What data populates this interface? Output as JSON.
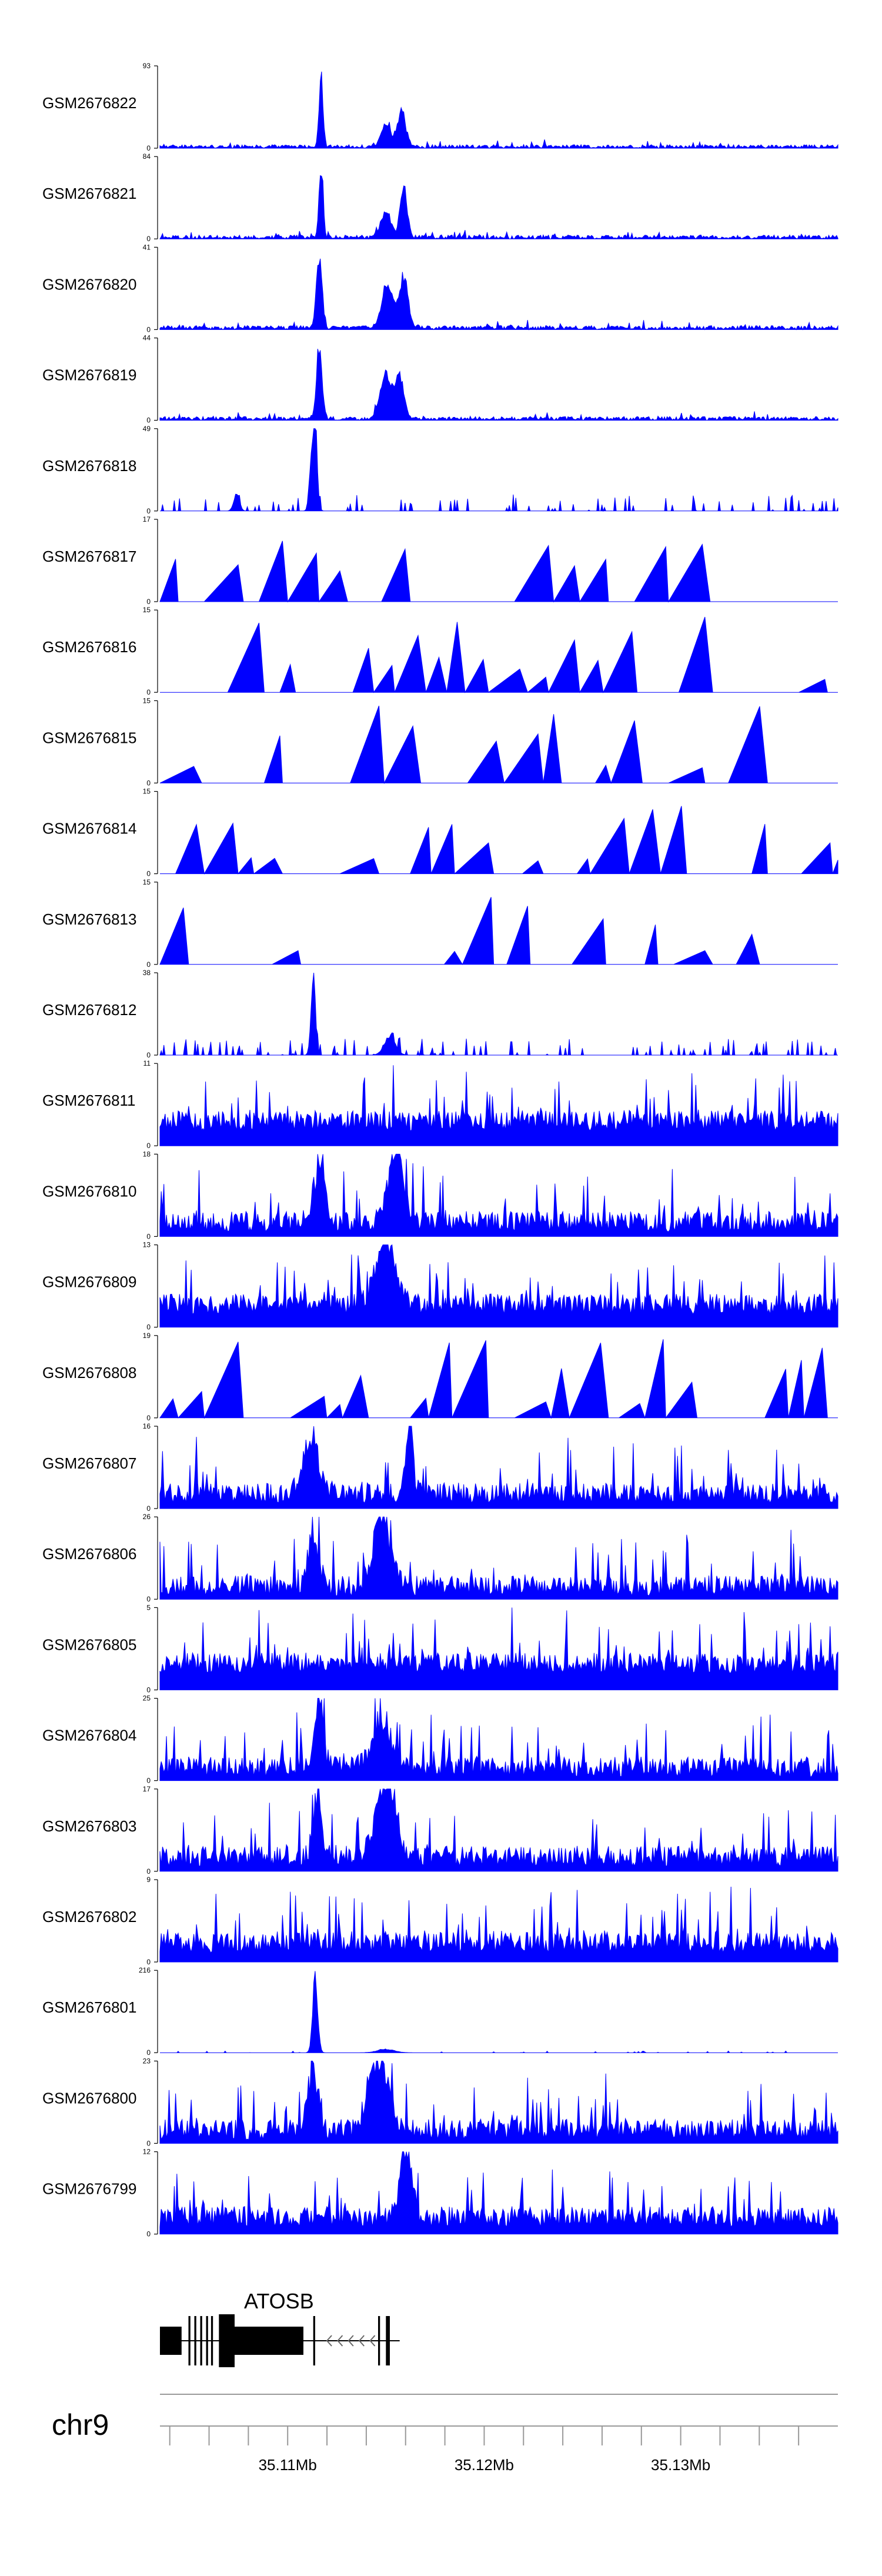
{
  "chart_data": {
    "type": "area",
    "description_note": "Genome-browser coverage tracks on chr9 around ATOSB",
    "chromosome": "chr9",
    "x_range": [
      35104500,
      35139000
    ],
    "x_ticks": [
      35105000,
      35107000,
      35109000,
      35111000,
      35113000,
      35115000,
      35117000,
      35119000,
      35121000,
      35123000,
      35125000,
      35127000,
      35129000,
      35131000,
      35133000,
      35135000,
      35137000
    ],
    "x_tick_labels": [
      {
        "pos": 35111000,
        "label": "35.11Mb"
      },
      {
        "pos": 35121000,
        "label": "35.12Mb"
      },
      {
        "pos": 35131000,
        "label": "35.13Mb"
      }
    ],
    "color": "#0000ff",
    "tracks": [
      {
        "name": "GSM2676822",
        "ymax": "93",
        "ymin": "0",
        "profile": "sharp",
        "seed": 1,
        "peaks": [
          [
            35112700,
            93,
            140
          ],
          [
            35116000,
            30,
            350
          ],
          [
            35116800,
            45,
            300
          ]
        ],
        "base": 4,
        "density": 1.0
      },
      {
        "name": "GSM2676821",
        "ymax": "84",
        "ymin": "0",
        "profile": "sharp",
        "seed": 2,
        "peaks": [
          [
            35112700,
            84,
            140
          ],
          [
            35116000,
            30,
            350
          ],
          [
            35116900,
            60,
            250
          ]
        ],
        "base": 4,
        "density": 1.0
      },
      {
        "name": "GSM2676820",
        "ymax": "41",
        "ymin": "0",
        "profile": "sharp",
        "seed": 3,
        "peaks": [
          [
            35112600,
            41,
            200
          ],
          [
            35116100,
            25,
            400
          ],
          [
            35116900,
            30,
            300
          ]
        ],
        "base": 2,
        "density": 1.0
      },
      {
        "name": "GSM2676819",
        "ymax": "44",
        "ymin": "0",
        "profile": "sharp",
        "seed": 4,
        "peaks": [
          [
            35112600,
            44,
            200
          ],
          [
            35116000,
            28,
            400
          ],
          [
            35116700,
            25,
            300
          ]
        ],
        "base": 2,
        "density": 1.0
      },
      {
        "name": "GSM2676818",
        "ymax": "49",
        "ymin": "0",
        "profile": "sparse",
        "seed": 5,
        "peaks": [
          [
            35112400,
            49,
            160
          ],
          [
            35112200,
            30,
            150
          ],
          [
            35108400,
            12,
            200
          ]
        ],
        "base": 1,
        "density": 0.45
      },
      {
        "name": "GSM2676817",
        "ymax": "17",
        "ymin": "0",
        "profile": "tri",
        "seed": 6,
        "peaks": [],
        "base": 0,
        "density": 0.55
      },
      {
        "name": "GSM2676816",
        "ymax": "15",
        "ymin": "0",
        "profile": "tri",
        "seed": 7,
        "peaks": [],
        "base": 0,
        "density": 0.6
      },
      {
        "name": "GSM2676815",
        "ymax": "15",
        "ymin": "0",
        "profile": "tri",
        "seed": 8,
        "peaks": [],
        "base": 0,
        "density": 0.45
      },
      {
        "name": "GSM2676814",
        "ymax": "15",
        "ymin": "0",
        "profile": "tri",
        "seed": 9,
        "peaks": [],
        "base": 0,
        "density": 0.55
      },
      {
        "name": "GSM2676813",
        "ymax": "15",
        "ymin": "0",
        "profile": "tri",
        "seed": 10,
        "peaks": [],
        "base": 0,
        "density": 0.45
      },
      {
        "name": "GSM2676812",
        "ymax": "38",
        "ymin": "0",
        "profile": "sparse",
        "seed": 11,
        "peaks": [
          [
            35112300,
            38,
            160
          ],
          [
            35116200,
            10,
            400
          ]
        ],
        "base": 1,
        "density": 0.55
      },
      {
        "name": "GSM2676811",
        "ymax": "11",
        "ymin": "0",
        "profile": "dense",
        "seed": 12,
        "peaks": [],
        "base": 2,
        "density": 1.0
      },
      {
        "name": "GSM2676810",
        "ymax": "18",
        "ymin": "0",
        "profile": "dense",
        "seed": 13,
        "peaks": [
          [
            35112600,
            15,
            400
          ],
          [
            35116500,
            18,
            500
          ]
        ],
        "base": 1,
        "density": 0.8
      },
      {
        "name": "GSM2676809",
        "ymax": "13",
        "ymin": "0",
        "profile": "dense",
        "seed": 14,
        "peaks": [
          [
            35116000,
            12,
            700
          ]
        ],
        "base": 2,
        "density": 0.9
      },
      {
        "name": "GSM2676808",
        "ymax": "19",
        "ymin": "0",
        "profile": "tri",
        "seed": 15,
        "peaks": [],
        "base": 0,
        "density": 0.6
      },
      {
        "name": "GSM2676807",
        "ymax": "16",
        "ymin": "0",
        "profile": "dense",
        "seed": 16,
        "peaks": [
          [
            35112200,
            11,
            600
          ],
          [
            35117200,
            16,
            250
          ]
        ],
        "base": 1,
        "density": 0.85
      },
      {
        "name": "GSM2676806",
        "ymax": "26",
        "ymin": "0",
        "profile": "dense",
        "seed": 17,
        "peaks": [
          [
            35112300,
            18,
            400
          ],
          [
            35115800,
            26,
            600
          ]
        ],
        "base": 1,
        "density": 0.8
      },
      {
        "name": "GSM2676805",
        "ymax": "5",
        "ymin": "0",
        "profile": "dense",
        "seed": 18,
        "peaks": [],
        "base": 1,
        "density": 1.0
      },
      {
        "name": "GSM2676804",
        "ymax": "25",
        "ymin": "0",
        "profile": "dense",
        "seed": 19,
        "peaks": [
          [
            35112600,
            25,
            300
          ],
          [
            35115800,
            16,
            700
          ]
        ],
        "base": 1,
        "density": 0.85
      },
      {
        "name": "GSM2676803",
        "ymax": "17",
        "ymin": "0",
        "profile": "dense",
        "seed": 20,
        "peaks": [
          [
            35112500,
            13,
            300
          ],
          [
            35116000,
            17,
            700
          ]
        ],
        "base": 1,
        "density": 0.9
      },
      {
        "name": "GSM2676802",
        "ymax": "9",
        "ymin": "0",
        "profile": "dense",
        "seed": 21,
        "peaks": [],
        "base": 1,
        "density": 1.0
      },
      {
        "name": "GSM2676801",
        "ymax": "216",
        "ymin": "0",
        "profile": "single",
        "seed": 22,
        "peaks": [
          [
            35112400,
            216,
            180
          ],
          [
            35116000,
            10,
            600
          ]
        ],
        "base": 0,
        "density": 0.3
      },
      {
        "name": "GSM2676800",
        "ymax": "23",
        "ymin": "0",
        "profile": "dense",
        "seed": 23,
        "peaks": [
          [
            35112300,
            20,
            350
          ],
          [
            35115600,
            23,
            700
          ]
        ],
        "base": 1,
        "density": 0.85
      },
      {
        "name": "GSM2676799",
        "ymax": "12",
        "ymin": "0",
        "profile": "dense",
        "seed": 24,
        "peaks": [
          [
            35117000,
            12,
            400
          ]
        ],
        "base": 1,
        "density": 0.95
      }
    ],
    "gene": {
      "name": "ATOSB",
      "strand": "-",
      "exons": [
        [
          35104500,
          35105600
        ],
        [
          35105950,
          35106050
        ],
        [
          35106250,
          35106350
        ],
        [
          35106550,
          35106650
        ],
        [
          35106850,
          35106950
        ],
        [
          35107100,
          35107200
        ],
        [
          35107500,
          35108300
        ],
        [
          35108300,
          35111800
        ],
        [
          35112300,
          35112400
        ],
        [
          35115600,
          35115700
        ],
        [
          35116000,
          35116200
        ]
      ],
      "span": [
        35104500,
        35116700
      ]
    }
  }
}
